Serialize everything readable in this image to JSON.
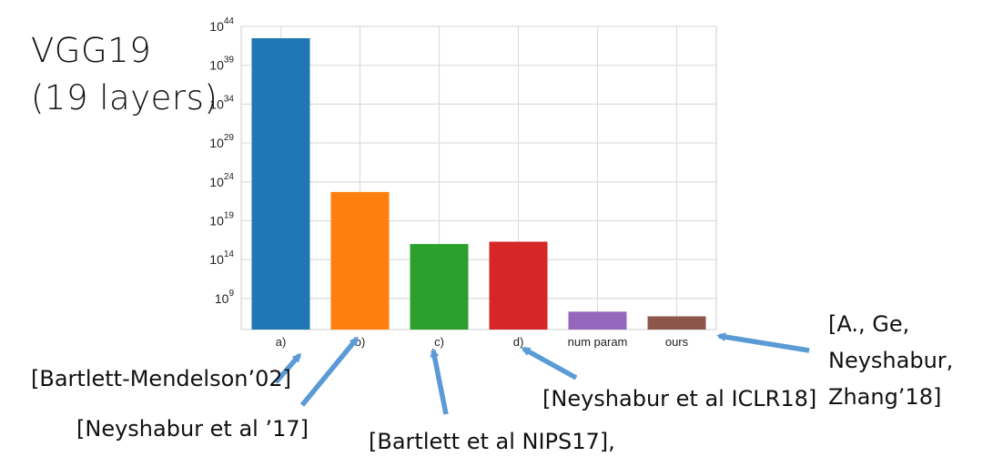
{
  "page_title": [
    "VGG19",
    "(19 layers)"
  ],
  "chart_data": {
    "type": "bar",
    "scale": "log",
    "categories": [
      "a)",
      "b)",
      "c)",
      "d)",
      "num param",
      "ours"
    ],
    "values": [
      3e+42,
      5e+22,
      1e+16,
      2e+16,
      20000000.0,
      5000000.0
    ],
    "colors": [
      "#1f77b4",
      "#ff7f0e",
      "#2ca02c",
      "#d62728",
      "#9467bd",
      "#8c564b"
    ],
    "ylim": [
      100000.0,
      1e+44
    ],
    "yticks": [
      {
        "exp": 9,
        "base": "10",
        "power": "9"
      },
      {
        "exp": 14,
        "base": "10",
        "power": "14"
      },
      {
        "exp": 19,
        "base": "10",
        "power": "19"
      },
      {
        "exp": 24,
        "base": "10",
        "power": "24"
      },
      {
        "exp": 29,
        "base": "10",
        "power": "29"
      },
      {
        "exp": 34,
        "base": "10",
        "power": "34"
      },
      {
        "exp": 39,
        "base": "10",
        "power": "39"
      },
      {
        "exp": 44,
        "base": "10",
        "power": "44"
      }
    ],
    "grid": true,
    "title": "",
    "xlabel": "",
    "ylabel": ""
  },
  "annotations": {
    "a": "[Bartlett-Mendelson’02]",
    "b": "[Neyshabur et al ’17]",
    "c": "[Bartlett et al NIPS17],",
    "d": "[Neyshabur et al ICLR18]",
    "ours": [
      "[A., Ge,",
      "Neyshabur,",
      "Zhang’18]"
    ]
  },
  "arrow_color": "#5b9bd5"
}
